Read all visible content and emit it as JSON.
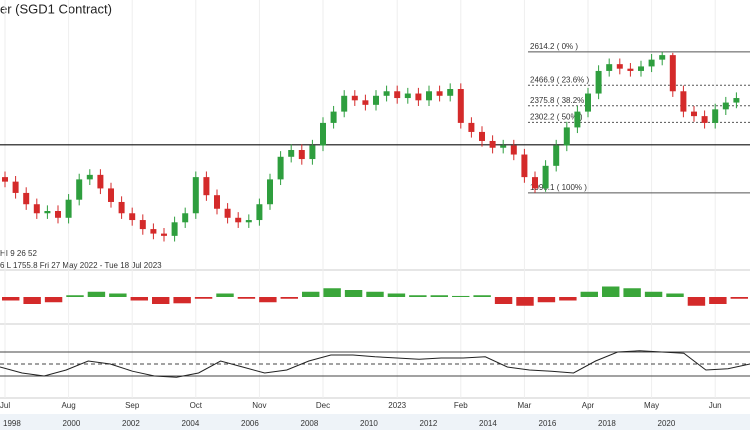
{
  "chart_data": {
    "type": "candlestick",
    "title": "er (SGD1 Contract)",
    "legend_lines": [
      "HI 9 26 52",
      "6  L 1755.8  Fri 27 May 2022 - Tue 18 Jul 2023"
    ],
    "up_color": "#2e9e3e",
    "down_color": "#d42a2a",
    "open": [
      2060,
      2040,
      1990,
      1940,
      1900,
      1910,
      1880,
      1960,
      2050,
      2070,
      2010,
      1950,
      1900,
      1870,
      1830,
      1810,
      1800,
      1860,
      1900,
      2060,
      1980,
      1920,
      1880,
      1860,
      1870,
      1940,
      2050,
      2150,
      2180,
      2140,
      2200,
      2300,
      2350,
      2420,
      2400,
      2380,
      2420,
      2440,
      2410,
      2430,
      2400,
      2440,
      2420,
      2450,
      2300,
      2260,
      2220,
      2190,
      2200,
      2160,
      2060,
      2010,
      2110,
      2200,
      2280,
      2350,
      2430,
      2530,
      2560,
      2540,
      2530,
      2550,
      2580,
      2600,
      2440,
      2350,
      2330,
      2300,
      2360,
      2390
    ],
    "high": [
      2085,
      2065,
      2015,
      1965,
      1935,
      1935,
      1985,
      2075,
      2095,
      2095,
      2035,
      1975,
      1925,
      1895,
      1855,
      1835,
      1885,
      1925,
      2085,
      2085,
      2005,
      1945,
      1905,
      1895,
      1965,
      2075,
      2175,
      2205,
      2205,
      2225,
      2325,
      2375,
      2445,
      2445,
      2425,
      2445,
      2465,
      2465,
      2455,
      2455,
      2465,
      2465,
      2475,
      2475,
      2325,
      2285,
      2245,
      2225,
      2225,
      2185,
      2085,
      2135,
      2225,
      2305,
      2375,
      2455,
      2555,
      2585,
      2585,
      2565,
      2575,
      2605,
      2614,
      2610,
      2465,
      2375,
      2355,
      2385,
      2415,
      2435
    ],
    "low": [
      2015,
      1965,
      1915,
      1875,
      1875,
      1855,
      1855,
      1935,
      2025,
      1985,
      1925,
      1875,
      1845,
      1805,
      1785,
      1775,
      1775,
      1835,
      1875,
      1955,
      1895,
      1855,
      1835,
      1835,
      1845,
      1915,
      2025,
      2125,
      2115,
      2115,
      2175,
      2275,
      2325,
      2375,
      2355,
      2355,
      2395,
      2385,
      2385,
      2375,
      2375,
      2395,
      2395,
      2275,
      2235,
      2195,
      2165,
      2165,
      2135,
      2035,
      1990,
      1995,
      2085,
      2175,
      2255,
      2325,
      2405,
      2505,
      2515,
      2505,
      2505,
      2525,
      2555,
      2415,
      2325,
      2305,
      2275,
      2275,
      2335,
      2365
    ],
    "close": [
      2040,
      1990,
      1940,
      1900,
      1910,
      1880,
      1960,
      2050,
      2070,
      2010,
      1950,
      1900,
      1870,
      1830,
      1810,
      1800,
      1860,
      1900,
      2060,
      1980,
      1920,
      1880,
      1860,
      1870,
      1940,
      2050,
      2150,
      2180,
      2140,
      2200,
      2300,
      2350,
      2420,
      2400,
      2380,
      2420,
      2440,
      2410,
      2430,
      2400,
      2440,
      2420,
      2450,
      2300,
      2260,
      2220,
      2190,
      2200,
      2160,
      2060,
      2010,
      2110,
      2200,
      2280,
      2350,
      2430,
      2530,
      2560,
      2540,
      2530,
      2550,
      2580,
      2600,
      2440,
      2350,
      2330,
      2300,
      2360,
      2390,
      2410
    ],
    "ylim": [
      1671,
      2844
    ],
    "xticks": [
      {
        "value": 0,
        "label": "Jul"
      },
      {
        "value": 6,
        "label": "Aug"
      },
      {
        "value": 12,
        "label": "Sep"
      },
      {
        "value": 18,
        "label": "Oct"
      },
      {
        "value": 24,
        "label": "Nov"
      },
      {
        "value": 30,
        "label": "Dec"
      },
      {
        "value": 37,
        "label": "2023"
      },
      {
        "value": 43,
        "label": "Feb"
      },
      {
        "value": 49,
        "label": "Mar"
      },
      {
        "value": 55,
        "label": "Apr"
      },
      {
        "value": 61,
        "label": "May"
      },
      {
        "value": 67,
        "label": "Jun"
      }
    ],
    "fib_levels": [
      {
        "value": 2614.2,
        "label": "2614.2 ( 0% )"
      },
      {
        "value": 2466.9,
        "label": "2466.9 ( 23.6% )"
      },
      {
        "value": 2375.8,
        "label": "2375.8 ( 38.2% )"
      },
      {
        "value": 2302.2,
        "label": "2302.2 ( 50% )"
      },
      {
        "value": 1990.1,
        "label": "1990.1 ( 100% )"
      }
    ],
    "support_line": 2203,
    "macd_histogram": {
      "ylim": [
        -60,
        60
      ],
      "values": [
        -10,
        -20,
        -15,
        5,
        15,
        10,
        -10,
        -20,
        -18,
        -5,
        10,
        -5,
        -15,
        -5,
        15,
        25,
        20,
        15,
        10,
        5,
        5,
        3,
        5,
        -20,
        -25,
        -15,
        -10,
        15,
        30,
        25,
        15,
        10,
        -25,
        -20,
        -5
      ]
    },
    "rsi": {
      "ylim": [
        0,
        100
      ],
      "levels": [
        70,
        50,
        30
      ],
      "values": [
        45,
        35,
        30,
        40,
        55,
        50,
        38,
        30,
        28,
        35,
        55,
        45,
        35,
        40,
        55,
        65,
        65,
        62,
        60,
        58,
        60,
        60,
        62,
        45,
        40,
        38,
        35,
        55,
        70,
        72,
        70,
        68,
        40,
        42,
        50
      ]
    },
    "navigator_years": [
      "1998",
      "2000",
      "2002",
      "2004",
      "2006",
      "2008",
      "2010",
      "2012",
      "2014",
      "2016",
      "2018",
      "2020"
    ]
  }
}
